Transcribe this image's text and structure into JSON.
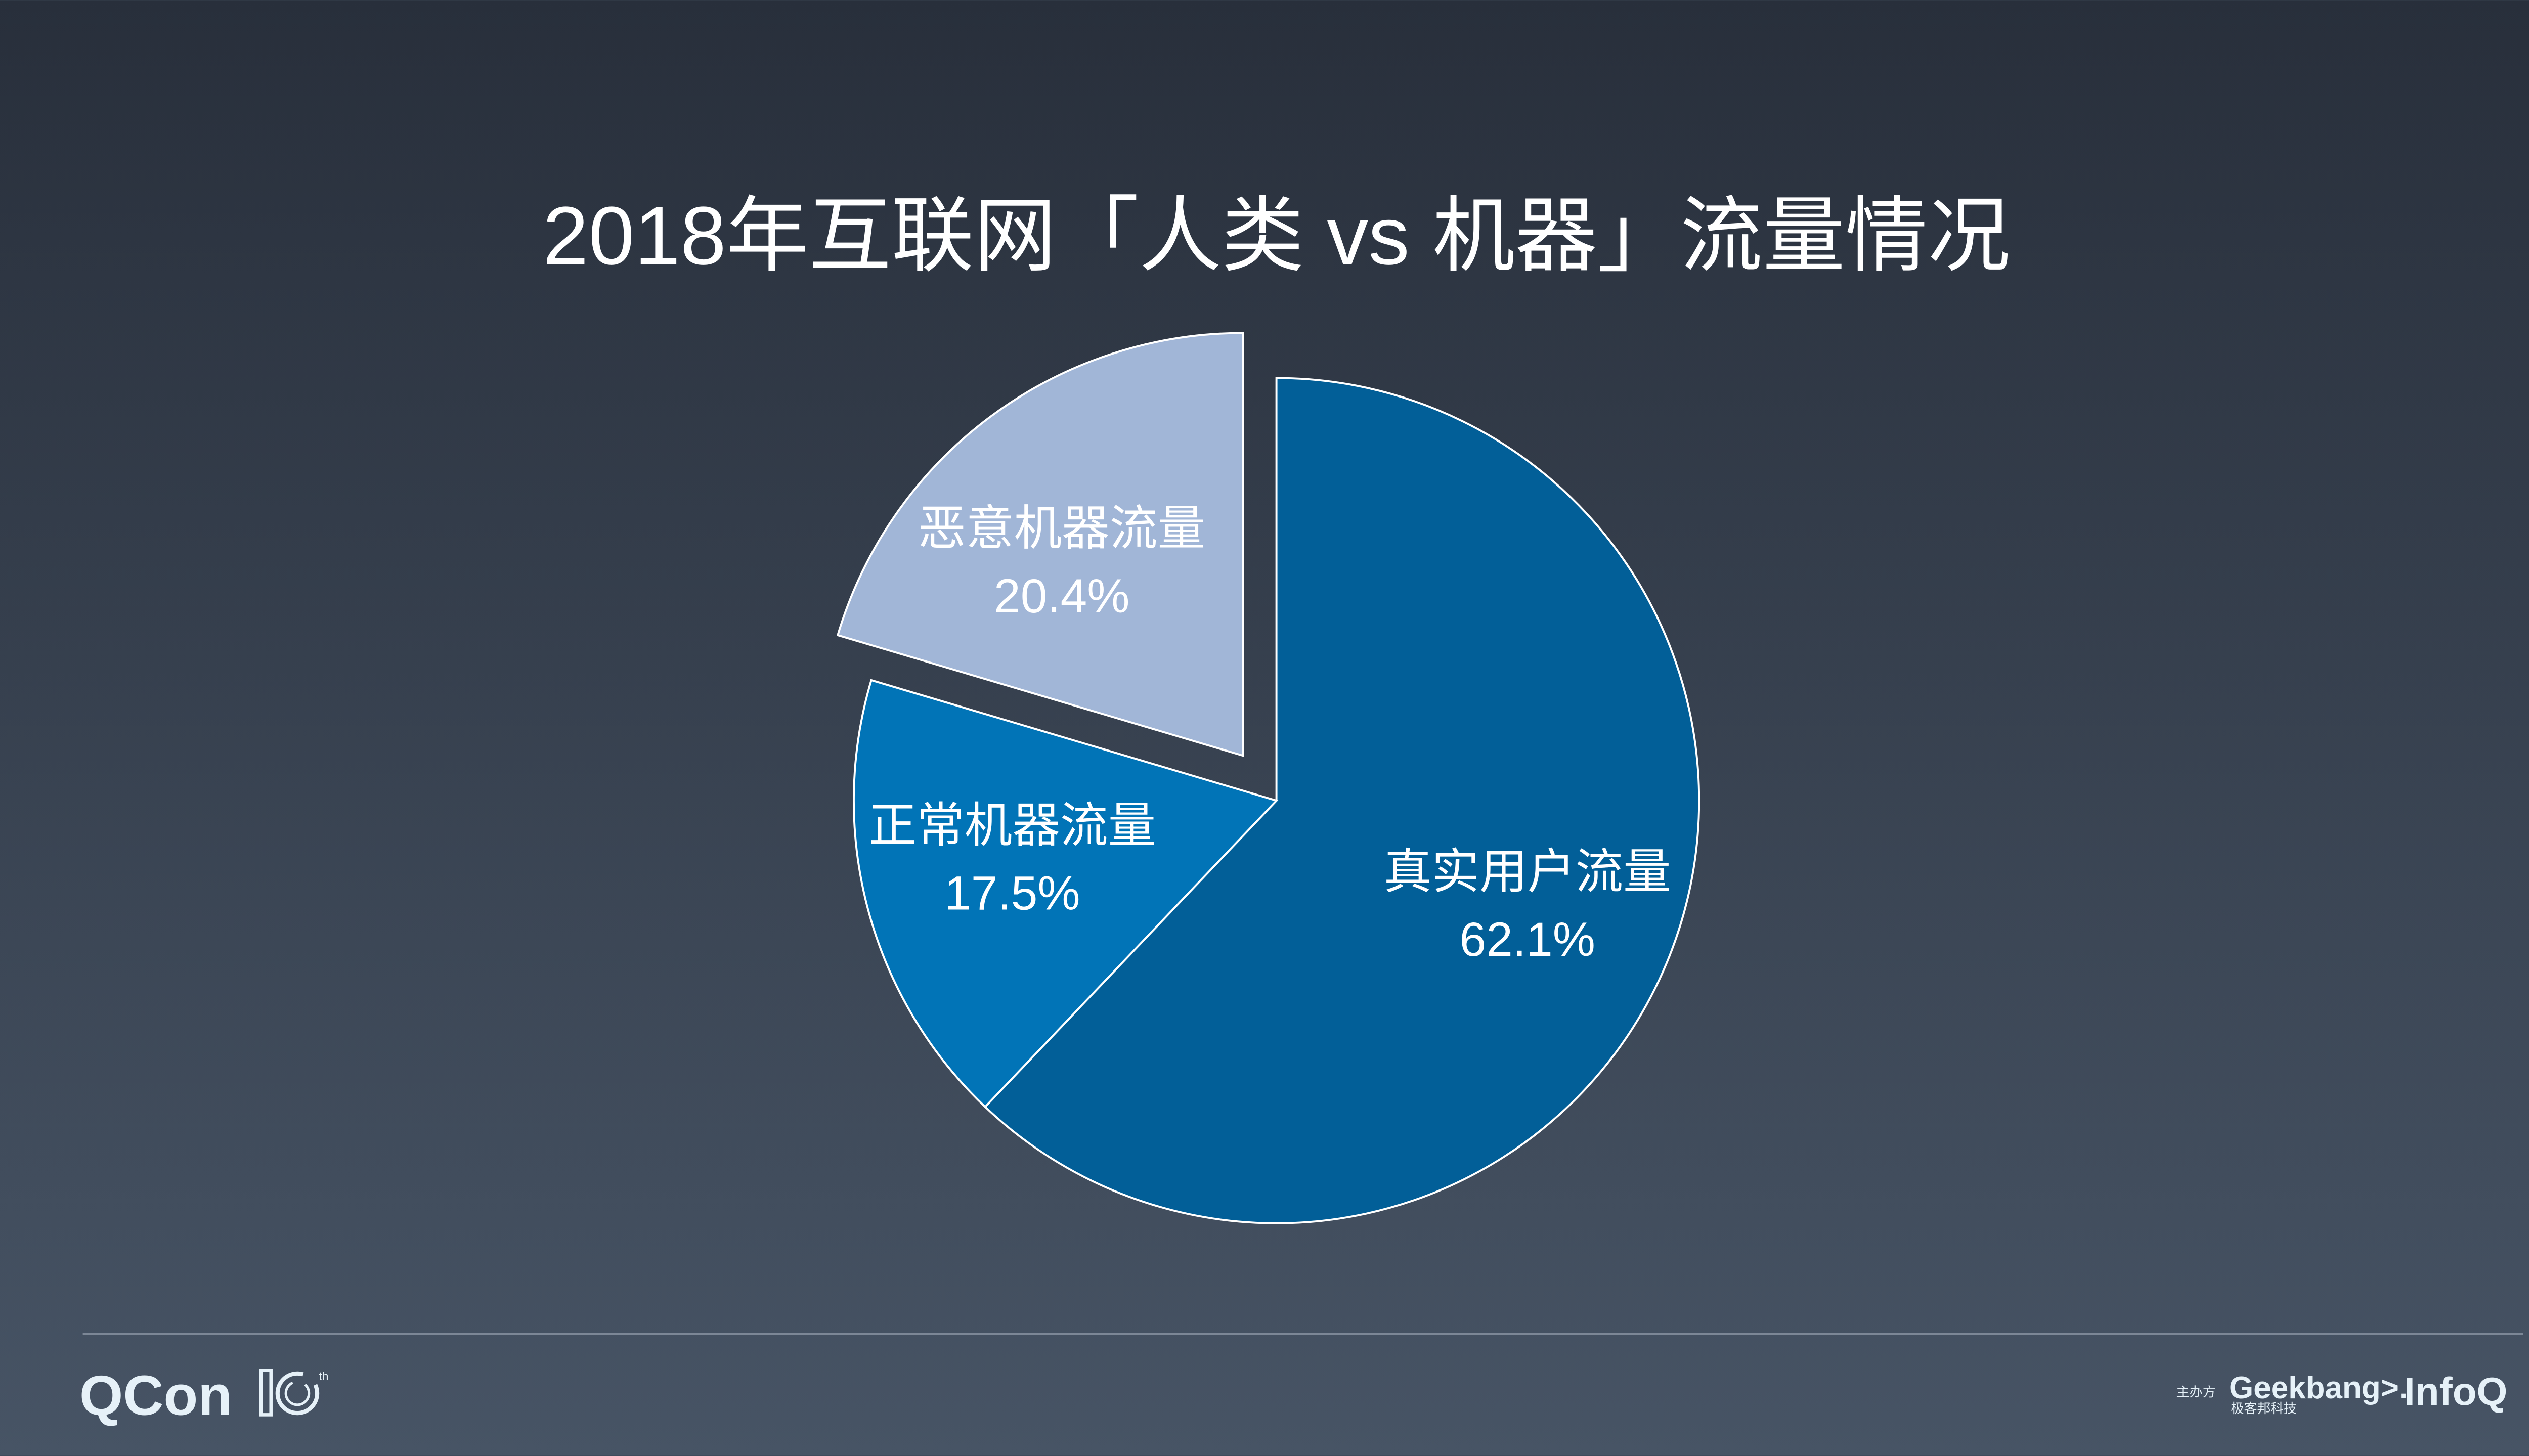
{
  "chart_data": {
    "type": "pie",
    "title": "2018年互联网「人类 vs 机器」流量情况",
    "slices": [
      {
        "label": "真实用户流量",
        "value": 62.1,
        "display": "62.1%",
        "color": "#025f98",
        "exploded": false
      },
      {
        "label": "正常机器流量",
        "value": 17.5,
        "display": "17.5%",
        "color": "#0174b7",
        "exploded": false
      },
      {
        "label": "恶意机器流量",
        "value": 20.4,
        "display": "20.4%",
        "color": "#a1b6d7",
        "exploded": true
      }
    ],
    "start_angle": "top, clockwise",
    "legend": "none (data labels on slices)"
  },
  "footer": {
    "left_logo": "QCon 10th",
    "organizer_label": "主办方",
    "geekbang_logo": "Geekbang>.",
    "geekbang_cn": "极客邦科技",
    "infoq_logo": "InfoQ"
  },
  "colors": {
    "bg_top": "#282f3b",
    "bg_bottom": "#475465",
    "text": "#ffffff"
  }
}
